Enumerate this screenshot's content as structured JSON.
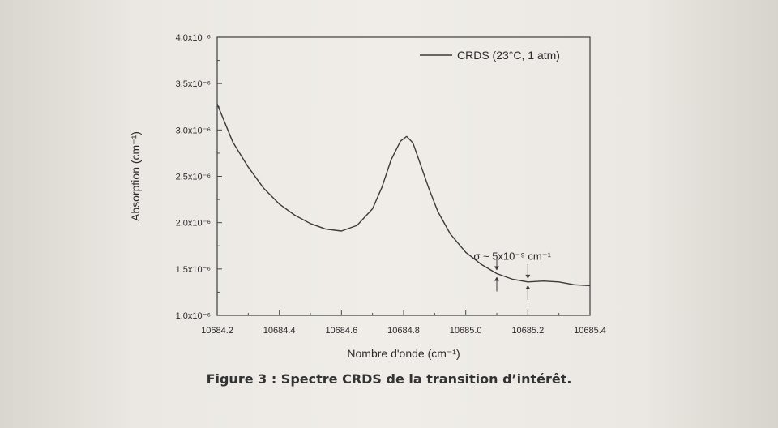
{
  "caption": "Figure 3 : Spectre CRDS de la transition d’intérêt.",
  "colors": {
    "line": "#3a3a3a",
    "axis": "#4a4a4a"
  },
  "chart_data": {
    "type": "line",
    "xlabel": "Nombre d'onde (cm⁻¹)",
    "ylabel": "Absorption (cm⁻¹)",
    "xlim": [
      10684.2,
      10685.4
    ],
    "ylim": [
      1e-06,
      4e-06
    ],
    "x_ticks": [
      10684.2,
      10684.4,
      10684.6,
      10684.8,
      10685.0,
      10685.2,
      10685.4
    ],
    "x_tick_labels": [
      "10684.2",
      "10684.4",
      "10684.6",
      "10684.8",
      "10685.0",
      "10685.2",
      "10685.4"
    ],
    "y_ticks": [
      1e-06,
      1.5e-06,
      2e-06,
      2.5e-06,
      3e-06,
      3.5e-06,
      4e-06
    ],
    "y_tick_labels": [
      "1.0x10⁻⁶",
      "1.5x10⁻⁶",
      "2.0x10⁻⁶",
      "2.5x10⁻⁶",
      "3.0x10⁻⁶",
      "3.5x10⁻⁶",
      "4.0x10⁻⁶"
    ],
    "legend": {
      "position": "top-right"
    },
    "series": [
      {
        "name": "CRDS (23°C, 1 atm)",
        "x": [
          10684.2,
          10684.25,
          10684.3,
          10684.35,
          10684.4,
          10684.45,
          10684.5,
          10684.55,
          10684.6,
          10684.65,
          10684.7,
          10684.73,
          10684.76,
          10684.79,
          10684.81,
          10684.83,
          10684.85,
          10684.88,
          10684.91,
          10684.95,
          10685.0,
          10685.05,
          10685.1,
          10685.15,
          10685.2,
          10685.25,
          10685.3,
          10685.35,
          10685.4
        ],
        "y": [
          3.28e-06,
          2.87e-06,
          2.6e-06,
          2.37e-06,
          2.2e-06,
          2.08e-06,
          1.99e-06,
          1.93e-06,
          1.91e-06,
          1.97e-06,
          2.15e-06,
          2.38e-06,
          2.68e-06,
          2.88e-06,
          2.93e-06,
          2.86e-06,
          2.67e-06,
          2.38e-06,
          2.12e-06,
          1.88e-06,
          1.68e-06,
          1.55e-06,
          1.45e-06,
          1.39e-06,
          1.36e-06,
          1.37e-06,
          1.36e-06,
          1.33e-06,
          1.32e-06
        ]
      }
    ],
    "annotations": [
      {
        "text": "σ ~ 5x10⁻⁹ cm⁻¹",
        "x": 10685.15,
        "y": 1.6e-06
      }
    ]
  }
}
